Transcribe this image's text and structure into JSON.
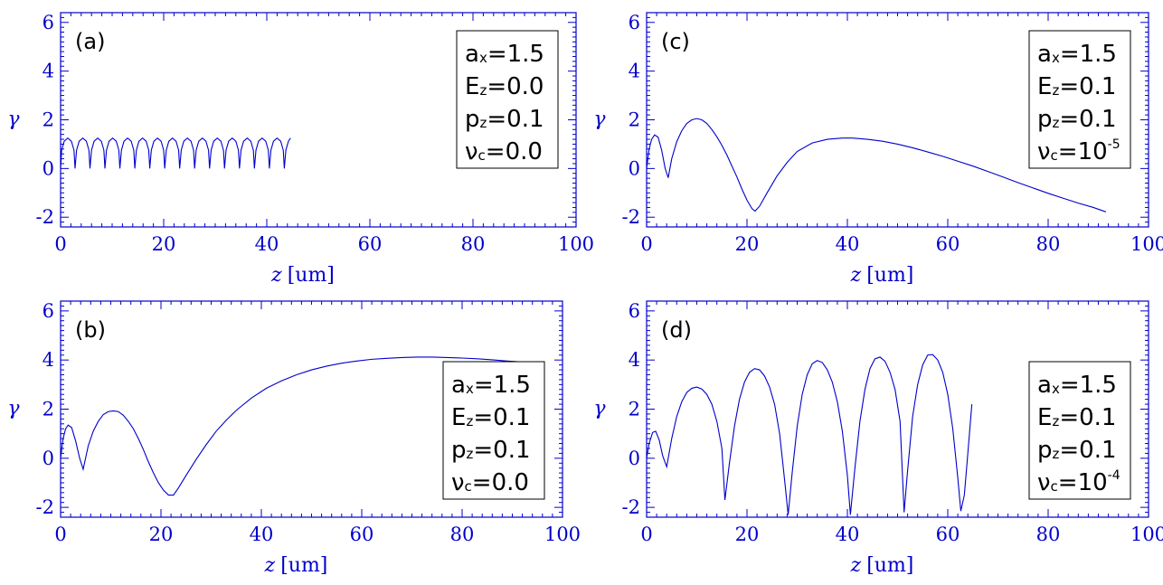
{
  "colors": {
    "axis": "#0000cc",
    "curve": "#0000cc",
    "legend_border": "#000000",
    "text": "#000000"
  },
  "chart_data": [
    {
      "type": "line",
      "panel_label": "(a)",
      "xlabel_var": "z",
      "xlabel_unit": "[um]",
      "ylabel": "γ",
      "xlim": [
        0,
        100
      ],
      "ylim": [
        -2.4,
        6.4
      ],
      "xticks": [
        "0",
        "20",
        "40",
        "60",
        "80",
        "100"
      ],
      "yticks": [
        "-2",
        "0",
        "2",
        "4",
        "6"
      ],
      "legend_position": "top-right",
      "legend": [
        {
          "base": "a",
          "sub": "x",
          "value": "=1.5"
        },
        {
          "base": "E",
          "sub": "z",
          "value": "=0.0"
        },
        {
          "base": "p",
          "sub": "z",
          "value": "=0.1"
        },
        {
          "base": "ν",
          "sub": "c",
          "value": "=0.0"
        }
      ],
      "series": [
        {
          "x": [
            0.0,
            0.2,
            0.7,
            1.4,
            2.1,
            2.6,
            2.8,
            3.1,
            3.6,
            4.3,
            5.0,
            5.5,
            5.7,
            6.0,
            6.5,
            7.2,
            7.9,
            8.4,
            8.6,
            8.9,
            9.4,
            10.1,
            10.8,
            11.3,
            11.5,
            11.8,
            12.3,
            13.0,
            13.7,
            14.2,
            14.4,
            14.7,
            15.2,
            15.9,
            16.6,
            17.1,
            17.3,
            17.6,
            18.1,
            18.8,
            19.5,
            20.0,
            20.2,
            20.5,
            21.0,
            21.7,
            22.4,
            22.9,
            23.1,
            23.4,
            23.9,
            24.6,
            25.3,
            25.8,
            26.0,
            26.3,
            26.8,
            27.5,
            28.2,
            28.7,
            28.9,
            29.2,
            29.7,
            30.4,
            31.1,
            31.6,
            31.8,
            32.1,
            32.6,
            33.3,
            34.0,
            34.5,
            34.7,
            35.0,
            35.5,
            36.2,
            36.9,
            37.4,
            37.6,
            37.9,
            38.4,
            39.1,
            39.8,
            40.3,
            40.5,
            40.8,
            41.3,
            42.0,
            42.7,
            43.2,
            43.4,
            43.7,
            44.2,
            44.6
          ],
          "y": [
            0.0,
            0.75,
            1.12,
            1.25,
            1.12,
            0.75,
            0.0,
            0.75,
            1.12,
            1.25,
            1.12,
            0.75,
            0.0,
            0.75,
            1.12,
            1.25,
            1.12,
            0.75,
            0.0,
            0.75,
            1.12,
            1.25,
            1.12,
            0.75,
            0.0,
            0.75,
            1.12,
            1.25,
            1.12,
            0.75,
            0.0,
            0.75,
            1.12,
            1.25,
            1.12,
            0.75,
            0.0,
            0.75,
            1.12,
            1.25,
            1.12,
            0.75,
            0.0,
            0.75,
            1.12,
            1.25,
            1.12,
            0.75,
            0.0,
            0.75,
            1.12,
            1.25,
            1.12,
            0.75,
            0.0,
            0.75,
            1.12,
            1.25,
            1.12,
            0.75,
            0.0,
            0.75,
            1.12,
            1.25,
            1.12,
            0.75,
            0.0,
            0.75,
            1.12,
            1.25,
            1.12,
            0.75,
            0.0,
            0.75,
            1.12,
            1.25,
            1.12,
            0.75,
            0.0,
            0.75,
            1.12,
            1.25,
            1.12,
            0.75,
            0.0,
            0.75,
            1.12,
            1.25,
            1.12,
            0.75,
            0.0,
            0.75,
            1.12,
            1.25
          ]
        }
      ]
    },
    {
      "type": "line",
      "panel_label": "(b)",
      "xlabel_var": "z",
      "xlabel_unit": "[um]",
      "ylabel": "γ",
      "xlim": [
        0,
        100
      ],
      "ylim": [
        -2.4,
        6.4
      ],
      "xticks": [
        "0",
        "20",
        "40",
        "60",
        "80",
        "100"
      ],
      "yticks": [
        "-2",
        "0",
        "2",
        "4",
        "6"
      ],
      "legend_position": "bottom-right",
      "legend": [
        {
          "base": "a",
          "sub": "x",
          "value": "=1.5"
        },
        {
          "base": "E",
          "sub": "z",
          "value": "=0.1"
        },
        {
          "base": "p",
          "sub": "z",
          "value": "=0.1"
        },
        {
          "base": "ν",
          "sub": "c",
          "value": "=0.0"
        }
      ],
      "series": [
        {
          "x": [
            0,
            0.5,
            1.0,
            1.5,
            2.2,
            3.0,
            3.8,
            4.5,
            5.5,
            6.5,
            7.5,
            8.5,
            9.5,
            10.5,
            11.5,
            12.5,
            13.5,
            14.5,
            15.5,
            16.5,
            17.5,
            18.5,
            19.5,
            20.5,
            21.5,
            22.5,
            23.5,
            25,
            27,
            29,
            31,
            33,
            35,
            38,
            41,
            44,
            47,
            50,
            53,
            56,
            59,
            62,
            65,
            68,
            71,
            74,
            77,
            80,
            83,
            86,
            89,
            92
          ],
          "y": [
            0,
            0.8,
            1.2,
            1.35,
            1.25,
            0.7,
            0.0,
            -0.45,
            0.5,
            1.1,
            1.5,
            1.78,
            1.9,
            1.93,
            1.9,
            1.75,
            1.5,
            1.2,
            0.8,
            0.35,
            -0.15,
            -0.6,
            -1.0,
            -1.3,
            -1.5,
            -1.5,
            -1.2,
            -0.7,
            -0.05,
            0.55,
            1.1,
            1.55,
            1.95,
            2.45,
            2.85,
            3.15,
            3.4,
            3.6,
            3.75,
            3.87,
            3.96,
            4.03,
            4.07,
            4.1,
            4.12,
            4.12,
            4.1,
            4.08,
            4.05,
            4.01,
            3.96,
            3.92
          ]
        }
      ]
    },
    {
      "type": "line",
      "panel_label": "(c)",
      "xlabel_var": "z",
      "xlabel_unit": "[um]",
      "ylabel": "γ",
      "xlim": [
        0,
        100
      ],
      "ylim": [
        -2.4,
        6.4
      ],
      "xticks": [
        "0",
        "20",
        "40",
        "60",
        "80",
        "100"
      ],
      "yticks": [
        "-2",
        "0",
        "2",
        "4",
        "6"
      ],
      "legend_position": "top-right",
      "legend": [
        {
          "base": "a",
          "sub": "x",
          "value": "=1.5"
        },
        {
          "base": "E",
          "sub": "z",
          "value": "=0.1"
        },
        {
          "base": "p",
          "sub": "z",
          "value": "=0.1"
        },
        {
          "base": "ν",
          "sub": "c",
          "value": "=10",
          "sup": "-5"
        }
      ],
      "series": [
        {
          "x": [
            0,
            0.5,
            1.0,
            1.6,
            2.3,
            3.0,
            3.7,
            4.3,
            5.0,
            6.0,
            7.0,
            8.0,
            9.0,
            10.0,
            11.0,
            12.0,
            13.0,
            14.0,
            15.0,
            16.0,
            17.0,
            18.0,
            19.0,
            20.0,
            21.0,
            21.6,
            22.5,
            24,
            26,
            28,
            30,
            33,
            36,
            39,
            41,
            44,
            47,
            50,
            53,
            56,
            59,
            62,
            65,
            68,
            71,
            74,
            77,
            80,
            83,
            86,
            89,
            91.5
          ],
          "y": [
            0,
            0.8,
            1.2,
            1.38,
            1.28,
            0.75,
            0.0,
            -0.38,
            0.4,
            1.1,
            1.55,
            1.85,
            2.0,
            2.05,
            2.0,
            1.85,
            1.6,
            1.3,
            0.95,
            0.55,
            0.1,
            -0.35,
            -0.85,
            -1.3,
            -1.65,
            -1.75,
            -1.55,
            -1.0,
            -0.3,
            0.25,
            0.7,
            1.05,
            1.2,
            1.25,
            1.25,
            1.2,
            1.12,
            1.0,
            0.85,
            0.68,
            0.5,
            0.3,
            0.1,
            -0.12,
            -0.35,
            -0.58,
            -0.8,
            -1.02,
            -1.22,
            -1.42,
            -1.6,
            -1.78
          ]
        }
      ]
    },
    {
      "type": "line",
      "panel_label": "(d)",
      "xlabel_var": "z",
      "xlabel_unit": "[um]",
      "ylabel": "γ",
      "xlim": [
        0,
        100
      ],
      "ylim": [
        -2.4,
        6.4
      ],
      "xticks": [
        "0",
        "20",
        "40",
        "60",
        "80",
        "100"
      ],
      "yticks": [
        "-2",
        "0",
        "2",
        "4",
        "6"
      ],
      "legend_position": "bottom-right",
      "legend": [
        {
          "base": "a",
          "sub": "x",
          "value": "=1.5"
        },
        {
          "base": "E",
          "sub": "z",
          "value": "=0.1"
        },
        {
          "base": "p",
          "sub": "z",
          "value": "=0.1"
        },
        {
          "base": "ν",
          "sub": "c",
          "value": "=10",
          "sup": "-4"
        }
      ],
      "series": [
        {
          "x": [
            0,
            0.5,
            1.2,
            1.8,
            2.5,
            3.2,
            4.0,
            5.0,
            6.0,
            7.0,
            8.0,
            9.0,
            10.0,
            11.0,
            12.0,
            13.0,
            14.0,
            15.0,
            15.6,
            16.5,
            17.5,
            18.5,
            19.5,
            20.5,
            21.5,
            22.5,
            23.5,
            24.5,
            25.5,
            26.5,
            27.5,
            28.2,
            29.0,
            30.0,
            31.0,
            32.0,
            33.0,
            34.0,
            35.0,
            36.0,
            37.0,
            38.0,
            39.0,
            40.0,
            40.6,
            41.5,
            42.5,
            43.5,
            44.5,
            45.5,
            46.5,
            47.5,
            48.5,
            49.5,
            50.5,
            51.3,
            52.0,
            53.0,
            54.0,
            55.0,
            56.0,
            57.0,
            58.0,
            59.0,
            60.0,
            61.0,
            62.0,
            62.6,
            63.3,
            64.0,
            64.8
          ],
          "y": [
            0,
            0.6,
            1.05,
            1.1,
            0.75,
            0.1,
            -0.35,
            0.8,
            1.7,
            2.3,
            2.68,
            2.85,
            2.9,
            2.82,
            2.6,
            2.2,
            1.5,
            0.4,
            -1.7,
            -0.2,
            1.3,
            2.4,
            3.1,
            3.5,
            3.65,
            3.6,
            3.35,
            2.9,
            2.2,
            1.0,
            -0.9,
            -2.3,
            -0.6,
            1.3,
            2.6,
            3.4,
            3.85,
            3.98,
            3.9,
            3.6,
            3.1,
            2.3,
            1.1,
            -0.7,
            -2.3,
            -0.4,
            1.5,
            2.8,
            3.65,
            4.05,
            4.12,
            3.95,
            3.5,
            2.8,
            1.5,
            -2.2,
            -0.5,
            1.7,
            3.0,
            3.8,
            4.2,
            4.22,
            4.0,
            3.5,
            2.6,
            1.2,
            -0.8,
            -2.15,
            -1.5,
            0.2,
            2.2
          ]
        }
      ]
    }
  ]
}
